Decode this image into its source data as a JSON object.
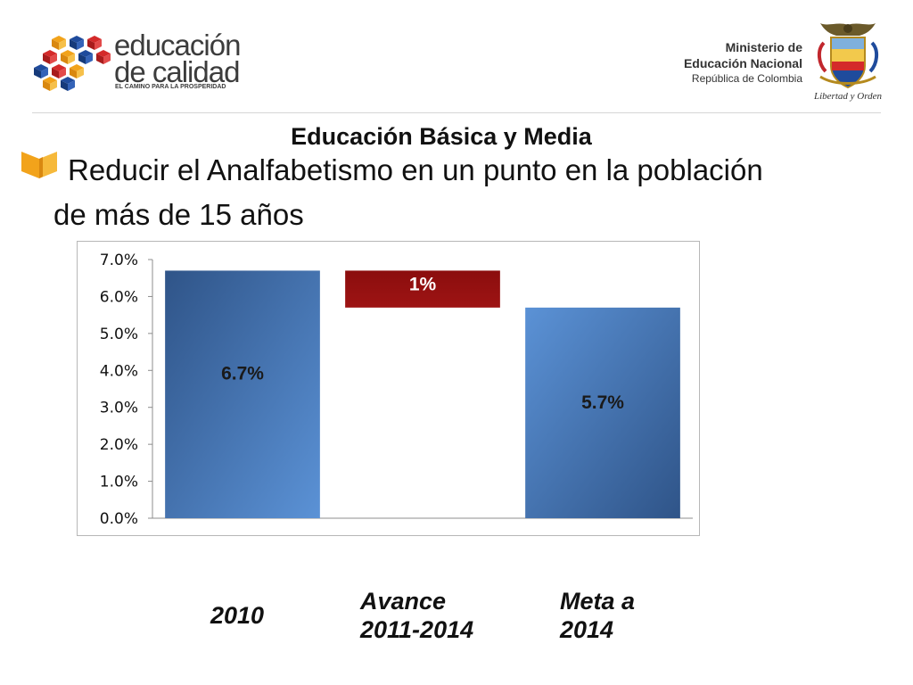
{
  "header": {
    "logo": {
      "word1": "educación",
      "word2": "de calidad",
      "slogan": "EL CAMINO PARA LA PROSPERIDAD"
    },
    "ministry": {
      "line1": "Ministerio de",
      "line2": "Educación Nacional",
      "line3": "República de Colombia"
    },
    "seal_caption": "Libertad y Orden"
  },
  "title": "Educación Básica y Media",
  "subtitle": "Reducir el Analfabetismo en un punto en la población de más de 15 años",
  "colors": {
    "bar_blue_dark": "#2f5488",
    "bar_blue_light": "#5b92d6",
    "bar_red": "#8b0d0d",
    "bullet_orange": "#f2a31b"
  },
  "chart_data": {
    "type": "bar",
    "categories": [
      "2010",
      "Avance 2011-2014",
      "Meta a 2014"
    ],
    "values": [
      6.7,
      1.0,
      5.7
    ],
    "bars": [
      {
        "category": "2010",
        "start": 0,
        "end": 6.7,
        "label": "6.7%"
      },
      {
        "category": "Avance 2011-2014",
        "start": 5.7,
        "end": 6.7,
        "label": "1%"
      },
      {
        "category": "Meta a 2014",
        "start": 0,
        "end": 5.7,
        "label": "5.7%"
      }
    ],
    "ylim": [
      0,
      7
    ],
    "yticks": [
      "0.0%",
      "1.0%",
      "2.0%",
      "3.0%",
      "4.0%",
      "5.0%",
      "6.0%",
      "7.0%"
    ],
    "title": "",
    "xlabel": "",
    "ylabel": "",
    "legend": "none",
    "grid": false
  },
  "category_labels": [
    {
      "line1": "2010",
      "line2": ""
    },
    {
      "line1": "Avance",
      "line2": "2011-2014"
    },
    {
      "line1": "Meta a",
      "line2": "2014"
    }
  ]
}
